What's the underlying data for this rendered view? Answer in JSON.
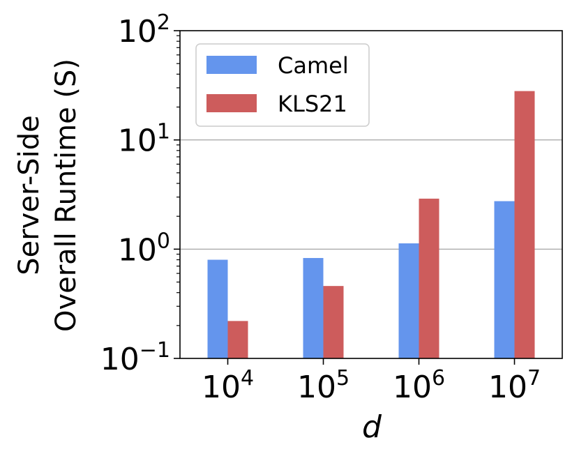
{
  "chart_data": {
    "type": "bar",
    "scale": "log",
    "xlabel": "d",
    "ylabel_lines": [
      "Server-Side",
      "Overall Runtime (S)"
    ],
    "categories": [
      {
        "base": "10",
        "exp": "4"
      },
      {
        "base": "10",
        "exp": "5"
      },
      {
        "base": "10",
        "exp": "6"
      },
      {
        "base": "10",
        "exp": "7"
      }
    ],
    "yticks": [
      {
        "value": 0.1,
        "base": "10",
        "exp": "−1"
      },
      {
        "value": 1,
        "base": "10",
        "exp": "0"
      },
      {
        "value": 10,
        "base": "10",
        "exp": "1"
      },
      {
        "value": 100,
        "base": "10",
        "exp": "2"
      }
    ],
    "ylim": [
      0.1,
      100
    ],
    "grid_values": [
      1,
      10
    ],
    "series": [
      {
        "name": "Camel",
        "color": "#6495ED",
        "values": [
          0.8,
          0.83,
          1.13,
          2.75
        ]
      },
      {
        "name": "KLS21",
        "color": "#CD5C5C",
        "values": [
          0.22,
          0.46,
          2.9,
          28
        ]
      }
    ],
    "legend": {
      "position": "top-left"
    }
  }
}
